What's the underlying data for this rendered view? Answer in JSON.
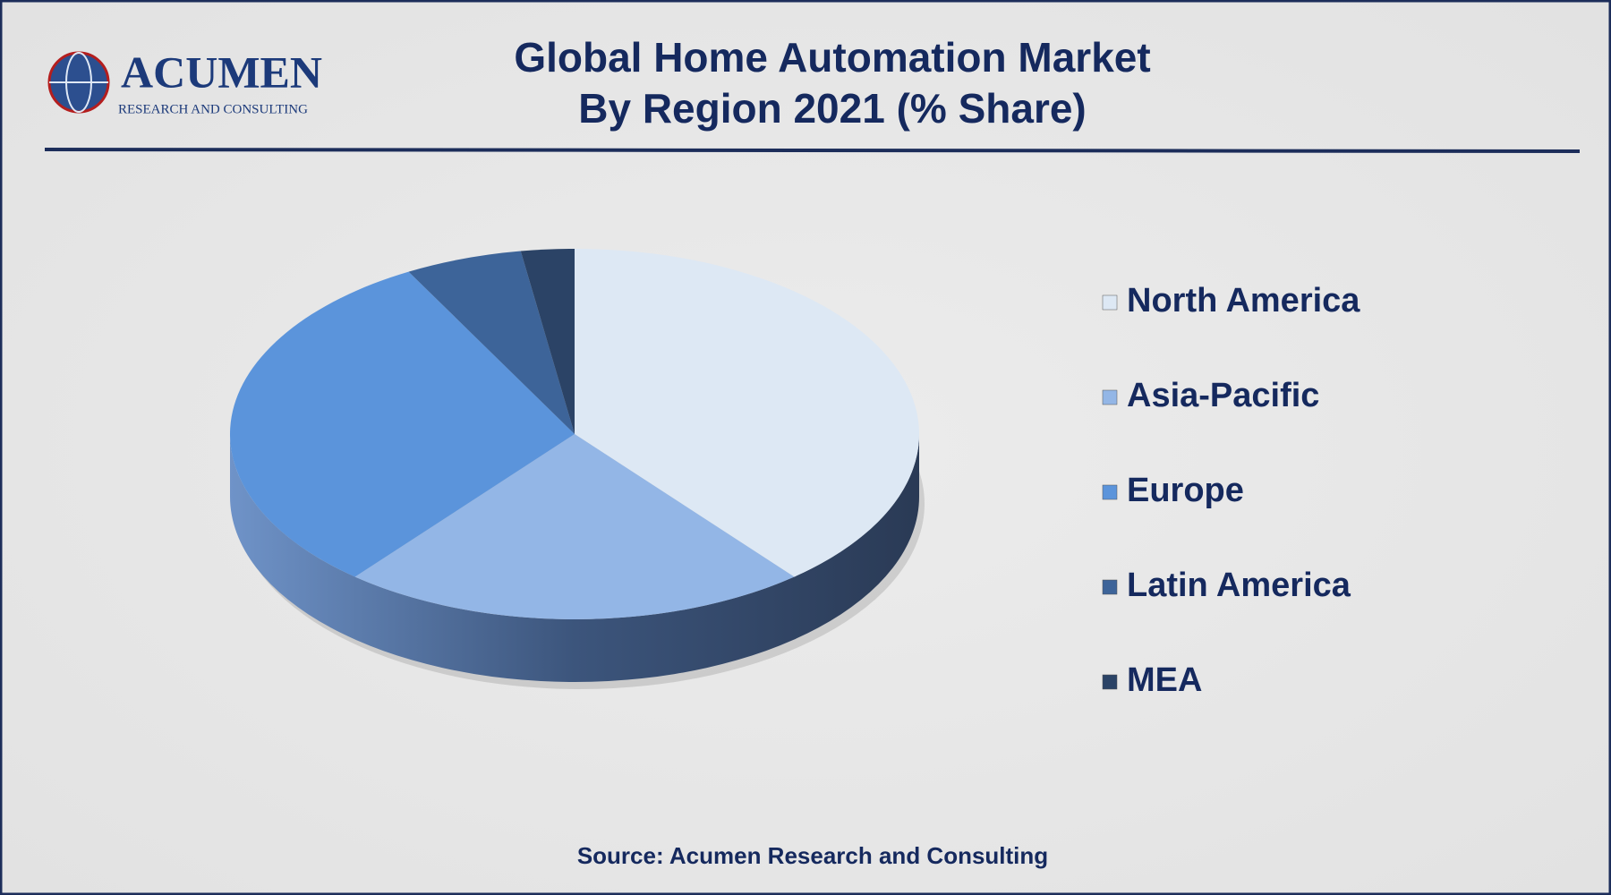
{
  "chart_data": {
    "type": "pie",
    "title": "Global Home Automation Market",
    "subtitle": "By Region 2021 (% Share)",
    "logo": {
      "name": "ACUMEN",
      "tagline": "RESEARCH AND CONSULTING"
    },
    "source": "Source: Acumen Research and Consulting",
    "categories": [
      "North America",
      "Asia-Pacific",
      "Europe",
      "Latin America",
      "MEA"
    ],
    "values": [
      39,
      22,
      31,
      5.5,
      2.5
    ],
    "colors": [
      "#dde8f4",
      "#93b6e6",
      "#5b94db",
      "#3d6499",
      "#2b4366"
    ],
    "legend": "right"
  }
}
